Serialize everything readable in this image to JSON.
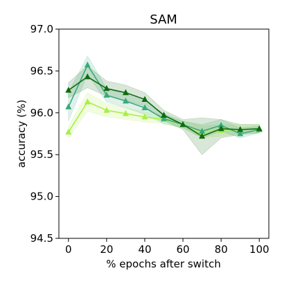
{
  "chart_data": {
    "type": "line",
    "title": "SAM",
    "xlabel": "% epochs after switch",
    "ylabel": "accuracy (%)",
    "xlim": [
      -5,
      105
    ],
    "ylim": [
      94.5,
      97.0
    ],
    "xticks": [
      0,
      20,
      40,
      60,
      80,
      100
    ],
    "xtick_labels": [
      "0",
      "20",
      "40",
      "60",
      "80",
      "100"
    ],
    "yticks": [
      94.5,
      95.0,
      95.5,
      96.0,
      96.5,
      97.0
    ],
    "ytick_labels": [
      "94.5",
      "95.0",
      "95.5",
      "96.0",
      "96.5",
      "97.0"
    ],
    "grid": false,
    "legend": "none",
    "x": [
      0,
      10,
      20,
      30,
      40,
      50,
      60,
      70,
      80,
      90,
      100
    ],
    "series": [
      {
        "color": "#aaee44",
        "marker": "triangle",
        "values": [
          95.77,
          96.13,
          96.03,
          95.99,
          95.95,
          95.92,
          95.86,
          95.77,
          95.79,
          95.8,
          95.81
        ],
        "band_low": [
          95.7,
          96.02,
          95.95,
          95.92,
          95.89,
          95.87,
          95.82,
          95.7,
          95.72,
          95.75,
          95.77
        ],
        "band_high": [
          95.84,
          96.24,
          96.11,
          96.06,
          96.01,
          95.97,
          95.9,
          95.84,
          95.86,
          95.86,
          95.86
        ]
      },
      {
        "color": "#3aaa7a",
        "marker": "triangle",
        "values": [
          96.07,
          96.57,
          96.21,
          96.14,
          96.06,
          95.93,
          95.86,
          95.78,
          95.85,
          95.75,
          95.8
        ],
        "band_low": [
          95.9,
          96.46,
          96.13,
          96.06,
          95.98,
          95.87,
          95.82,
          95.7,
          95.78,
          95.7,
          95.76
        ],
        "band_high": [
          96.24,
          96.68,
          96.29,
          96.22,
          96.14,
          95.99,
          95.9,
          95.86,
          95.92,
          95.82,
          95.84
        ]
      },
      {
        "color": "#0f6a0f",
        "marker": "triangle",
        "values": [
          96.27,
          96.43,
          96.29,
          96.24,
          96.16,
          95.97,
          95.86,
          95.72,
          95.81,
          95.8,
          95.81
        ],
        "band_low": [
          96.18,
          96.3,
          96.2,
          96.15,
          96.08,
          95.91,
          95.8,
          95.5,
          95.7,
          95.74,
          95.76
        ],
        "band_high": [
          96.36,
          96.56,
          96.38,
          96.33,
          96.24,
          96.03,
          95.92,
          95.94,
          95.92,
          95.86,
          95.86
        ]
      }
    ]
  }
}
